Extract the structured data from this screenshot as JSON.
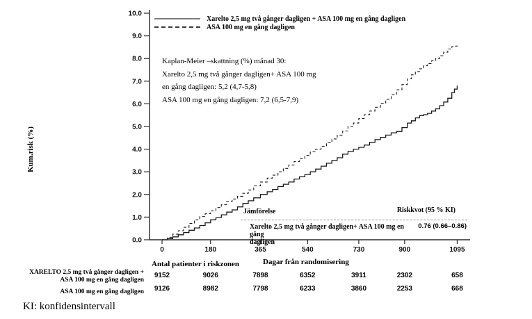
{
  "chart_data": {
    "type": "line",
    "subtype": "kaplan-meier-step",
    "title": "",
    "xlabel": "Dagar från randomisering",
    "ylabel": "Kum.risk (%)",
    "xlim": [
      0,
      1095
    ],
    "ylim": [
      0,
      10
    ],
    "x_ticks": [
      0,
      180,
      365,
      540,
      730,
      900,
      1095
    ],
    "y_ticks": [
      "0.0",
      "1.0",
      "2.0",
      "3.0",
      "4.0",
      "5.0",
      "6.0",
      "7.0",
      "8.0",
      "9.0",
      "10.0"
    ],
    "grid": false,
    "legend_position": "top-left-inside",
    "legend": [
      {
        "name": "Xarelto 2,5 mg två gånger dagligen + ASA 100 mg en gång dagligen",
        "style": "solid"
      },
      {
        "name": "ASA 100 mg en gång dagligen",
        "style": "dashed"
      }
    ],
    "line_color": "#1a1a1a",
    "series": [
      {
        "name": "Xarelto 2,5 mg två gånger dagligen + ASA 100 mg en gång dagligen",
        "style": "solid",
        "points": [
          [
            0,
            0
          ],
          [
            20,
            0.05
          ],
          [
            40,
            0.13
          ],
          [
            60,
            0.22
          ],
          [
            80,
            0.32
          ],
          [
            100,
            0.42
          ],
          [
            120,
            0.52
          ],
          [
            140,
            0.63
          ],
          [
            160,
            0.75
          ],
          [
            180,
            0.88
          ],
          [
            200,
            0.98
          ],
          [
            220,
            1.1
          ],
          [
            240,
            1.22
          ],
          [
            260,
            1.32
          ],
          [
            280,
            1.45
          ],
          [
            300,
            1.6
          ],
          [
            320,
            1.72
          ],
          [
            340,
            1.85
          ],
          [
            365,
            2.0
          ],
          [
            390,
            2.12
          ],
          [
            410,
            2.22
          ],
          [
            430,
            2.35
          ],
          [
            450,
            2.45
          ],
          [
            470,
            2.55
          ],
          [
            490,
            2.68
          ],
          [
            510,
            2.78
          ],
          [
            530,
            2.88
          ],
          [
            550,
            3.0
          ],
          [
            570,
            3.12
          ],
          [
            590,
            3.25
          ],
          [
            610,
            3.38
          ],
          [
            630,
            3.5
          ],
          [
            650,
            3.62
          ],
          [
            670,
            3.78
          ],
          [
            690,
            3.9
          ],
          [
            710,
            4.0
          ],
          [
            730,
            4.08
          ],
          [
            750,
            4.18
          ],
          [
            770,
            4.3
          ],
          [
            790,
            4.42
          ],
          [
            810,
            4.52
          ],
          [
            830,
            4.62
          ],
          [
            850,
            4.72
          ],
          [
            870,
            4.78
          ],
          [
            890,
            4.95
          ],
          [
            910,
            5.15
          ],
          [
            925,
            5.25
          ],
          [
            940,
            5.38
          ],
          [
            955,
            5.48
          ],
          [
            970,
            5.52
          ],
          [
            985,
            5.58
          ],
          [
            1000,
            5.68
          ],
          [
            1015,
            5.78
          ],
          [
            1030,
            5.92
          ],
          [
            1045,
            6.08
          ],
          [
            1060,
            6.25
          ],
          [
            1075,
            6.5
          ],
          [
            1085,
            6.65
          ],
          [
            1095,
            6.8
          ]
        ]
      },
      {
        "name": "ASA 100 mg en gång dagligen",
        "style": "dashed",
        "points": [
          [
            0,
            0
          ],
          [
            20,
            0.1
          ],
          [
            40,
            0.25
          ],
          [
            60,
            0.4
          ],
          [
            80,
            0.55
          ],
          [
            100,
            0.72
          ],
          [
            120,
            0.88
          ],
          [
            140,
            1.02
          ],
          [
            160,
            1.15
          ],
          [
            180,
            1.28
          ],
          [
            200,
            1.42
          ],
          [
            220,
            1.55
          ],
          [
            240,
            1.68
          ],
          [
            260,
            1.8
          ],
          [
            280,
            1.92
          ],
          [
            300,
            2.05
          ],
          [
            320,
            2.2
          ],
          [
            340,
            2.38
          ],
          [
            365,
            2.55
          ],
          [
            390,
            2.72
          ],
          [
            410,
            2.85
          ],
          [
            430,
            3.0
          ],
          [
            450,
            3.15
          ],
          [
            470,
            3.3
          ],
          [
            490,
            3.45
          ],
          [
            510,
            3.58
          ],
          [
            530,
            3.72
          ],
          [
            550,
            3.88
          ],
          [
            570,
            4.0
          ],
          [
            590,
            4.12
          ],
          [
            610,
            4.28
          ],
          [
            630,
            4.45
          ],
          [
            650,
            4.62
          ],
          [
            670,
            4.8
          ],
          [
            690,
            5.0
          ],
          [
            710,
            5.15
          ],
          [
            730,
            5.35
          ],
          [
            750,
            5.52
          ],
          [
            770,
            5.68
          ],
          [
            790,
            5.85
          ],
          [
            810,
            6.02
          ],
          [
            830,
            6.2
          ],
          [
            850,
            6.4
          ],
          [
            870,
            6.62
          ],
          [
            890,
            6.85
          ],
          [
            910,
            7.1
          ],
          [
            925,
            7.28
          ],
          [
            940,
            7.42
          ],
          [
            955,
            7.55
          ],
          [
            970,
            7.68
          ],
          [
            985,
            7.78
          ],
          [
            1000,
            7.9
          ],
          [
            1015,
            8.0
          ],
          [
            1030,
            8.12
          ],
          [
            1045,
            8.28
          ],
          [
            1060,
            8.42
          ],
          [
            1075,
            8.52
          ],
          [
            1085,
            8.55
          ],
          [
            1095,
            8.57
          ]
        ]
      }
    ],
    "annotations": {
      "km_estimate_lines": [
        "Kaplan-Meier –skattning (%) månad 30:",
        "Xarelto 2,5 mg två gånger dagligen+ ASA 100 mg",
        "en gång dagligen: 5,2 (4,7-5,8)",
        "ASA 100 mg en gång dagligen: 7,2 (6,5-7,9)"
      ]
    }
  },
  "comparison": {
    "header_left": "Jämförelse",
    "header_right": "Riskkvot (95 % KI)",
    "row_label": "Xarelto 2,5 mg två gånger dagligen+ ASA 100 mg en gång\ndagligen",
    "row_value": "0.76 (0.66–0.86)"
  },
  "risk_table": {
    "title": "Antal patienter i riskzonen",
    "rows": [
      {
        "label": "XARELTO 2,5 mg två gånger dagligen +\nASA 100 mg en gång dagligen",
        "counts": [
          "9152",
          "9026",
          "7898",
          "6352",
          "3911",
          "2302",
          "658"
        ]
      },
      {
        "label": "ASA 100 mg en gång dagligen",
        "counts": [
          "9126",
          "8982",
          "7798",
          "6233",
          "3860",
          "2253",
          "668"
        ]
      }
    ]
  },
  "footnote": "KI: konfidensintervall"
}
